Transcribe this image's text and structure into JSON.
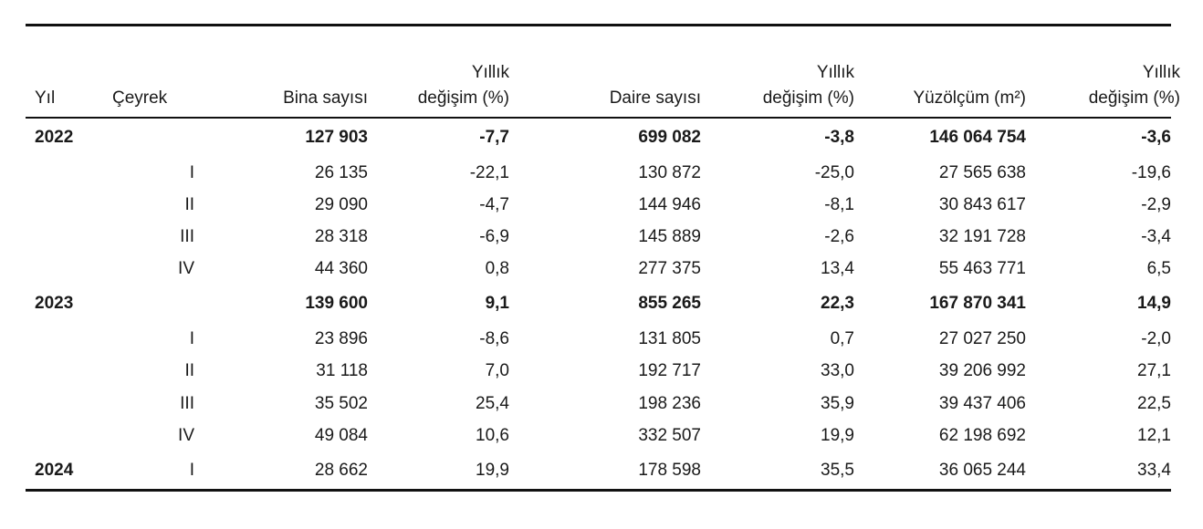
{
  "headers": {
    "year": "Yıl",
    "quarter": "Çeyrek",
    "buildings": "Bina sayısı",
    "buildings_change_top": "Yıllık",
    "buildings_change_bottom": "değişim (%)",
    "dwellings": "Daire sayısı",
    "dwellings_change_top": "Yıllık",
    "dwellings_change_bottom": "değişim (%)",
    "area": "Yüzölçüm (m²)",
    "area_change_top": "Yıllık",
    "area_change_bottom": "değişim (%)"
  },
  "rows": [
    {
      "year": "2022",
      "quarter": "",
      "buildings": "127 903",
      "b_chg": "-7,7",
      "dwellings": "699 082",
      "d_chg": "-3,8",
      "area": "146 064 754",
      "a_chg": "-3,6"
    },
    {
      "year": "",
      "quarter": "I",
      "buildings": "26 135",
      "b_chg": "-22,1",
      "dwellings": "130 872",
      "d_chg": "-25,0",
      "area": "27 565 638",
      "a_chg": "-19,6"
    },
    {
      "year": "",
      "quarter": "II",
      "buildings": "29 090",
      "b_chg": "-4,7",
      "dwellings": "144 946",
      "d_chg": "-8,1",
      "area": "30 843 617",
      "a_chg": "-2,9"
    },
    {
      "year": "",
      "quarter": "III",
      "buildings": "28 318",
      "b_chg": "-6,9",
      "dwellings": "145 889",
      "d_chg": "-2,6",
      "area": "32 191 728",
      "a_chg": "-3,4"
    },
    {
      "year": "",
      "quarter": "IV",
      "buildings": "44 360",
      "b_chg": "0,8",
      "dwellings": "277 375",
      "d_chg": "13,4",
      "area": "55 463 771",
      "a_chg": "6,5"
    },
    {
      "year": "2023",
      "quarter": "",
      "buildings": "139 600",
      "b_chg": "9,1",
      "dwellings": "855 265",
      "d_chg": "22,3",
      "area": "167 870 341",
      "a_chg": "14,9"
    },
    {
      "year": "",
      "quarter": "I",
      "buildings": "23 896",
      "b_chg": "-8,6",
      "dwellings": "131 805",
      "d_chg": "0,7",
      "area": "27 027 250",
      "a_chg": "-2,0"
    },
    {
      "year": "",
      "quarter": "II",
      "buildings": "31 118",
      "b_chg": "7,0",
      "dwellings": "192 717",
      "d_chg": "33,0",
      "area": "39 206 992",
      "a_chg": "27,1"
    },
    {
      "year": "",
      "quarter": "III",
      "buildings": "35 502",
      "b_chg": "25,4",
      "dwellings": "198 236",
      "d_chg": "35,9",
      "area": "39 437 406",
      "a_chg": "22,5"
    },
    {
      "year": "",
      "quarter": "IV",
      "buildings": "49 084",
      "b_chg": "10,6",
      "dwellings": "332 507",
      "d_chg": "19,9",
      "area": "62 198 692",
      "a_chg": "12,1"
    },
    {
      "year": "2024",
      "quarter": "I",
      "buildings": "28 662",
      "b_chg": "19,9",
      "dwellings": "178 598",
      "d_chg": "35,5",
      "area": "36 065 244",
      "a_chg": "33,4"
    }
  ]
}
